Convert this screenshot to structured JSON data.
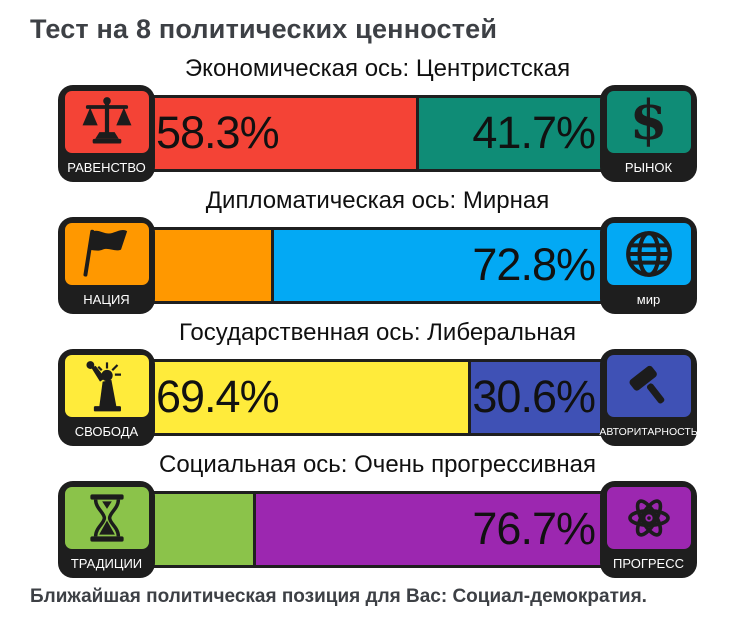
{
  "page": {
    "title": "Тест на 8 политических ценностей",
    "footer": "Ближайшая политическая позиция для Вас: Социал-демократия."
  },
  "colors": {
    "equality": "#f44336",
    "market": "#0f8c76",
    "nation": "#ff9800",
    "peace": "#03a9f4",
    "liberty": "#ffeb3b",
    "authority": "#3f51b5",
    "tradition": "#8bc34a",
    "progress": "#9c27b0",
    "outline": "#1f1f1f",
    "heading": "#3d4045"
  },
  "bars": [
    {
      "caption": "Экономическая ось: Центристская",
      "left": {
        "label": "РАВЕНСТВО",
        "icon": "scales-icon",
        "color": "#f44336",
        "pct": "58.3",
        "pct_label": "58.3%"
      },
      "right": {
        "label": "РЫНОК",
        "icon": "dollar-icon",
        "color": "#0f8c76",
        "pct": "41.7",
        "pct_label": "41.7%"
      }
    },
    {
      "caption": "Дипломатическая ось: Мирная",
      "left": {
        "label": "НАЦИЯ",
        "icon": "flag-icon",
        "color": "#ff9800",
        "pct": "27.2",
        "pct_label": ""
      },
      "right": {
        "label": "мир",
        "icon": "globe-icon",
        "color": "#03a9f4",
        "pct": "72.8",
        "pct_label": "72.8%"
      }
    },
    {
      "caption": "Государственная ось: Либеральная",
      "left": {
        "label": "СВОБОДА",
        "icon": "liberty-statue-icon",
        "color": "#ffeb3b",
        "pct": "69.4",
        "pct_label": "69.4%"
      },
      "right": {
        "label": "АВТОРИТАРНОСТЬ",
        "icon": "gavel-icon",
        "color": "#3f51b5",
        "pct": "30.6",
        "pct_label": "30.6%"
      }
    },
    {
      "caption": "Социальная ось: Очень прогрессивная",
      "left": {
        "label": "ТРАДИЦИИ",
        "icon": "hourglass-icon",
        "color": "#8bc34a",
        "pct": "23.3",
        "pct_label": ""
      },
      "right": {
        "label": "ПРОГРЕСС",
        "icon": "atom-icon",
        "color": "#9c27b0",
        "pct": "76.7",
        "pct_label": "76.7%"
      }
    }
  ],
  "chart_data": {
    "type": "bar",
    "orientation": "horizontal-stacked",
    "title": "Тест на 8 политических ценностей",
    "axes": [
      {
        "axis": "Экономическая ось",
        "result": "Центристская",
        "segments": [
          {
            "name": "Равенство",
            "value": 58.3
          },
          {
            "name": "Рынок",
            "value": 41.7
          }
        ],
        "visible_value_labels": [
          "58.3%",
          "41.7%"
        ]
      },
      {
        "axis": "Дипломатическая ось",
        "result": "Мирная",
        "segments": [
          {
            "name": "Нация",
            "value": 27.2
          },
          {
            "name": "Мир",
            "value": 72.8
          }
        ],
        "visible_value_labels": [
          "72.8%"
        ]
      },
      {
        "axis": "Государственная ось",
        "result": "Либеральная",
        "segments": [
          {
            "name": "Свобода",
            "value": 69.4
          },
          {
            "name": "Авторитарность",
            "value": 30.6
          }
        ],
        "visible_value_labels": [
          "69.4%",
          "30.6%"
        ]
      },
      {
        "axis": "Социальная ось",
        "result": "Очень прогрессивная",
        "segments": [
          {
            "name": "Традиции",
            "value": 23.3
          },
          {
            "name": "Прогресс",
            "value": 76.7
          }
        ],
        "visible_value_labels": [
          "76.7%"
        ]
      }
    ],
    "footnote": "Ближайшая политическая позиция для Вас: Социал-демократия."
  }
}
